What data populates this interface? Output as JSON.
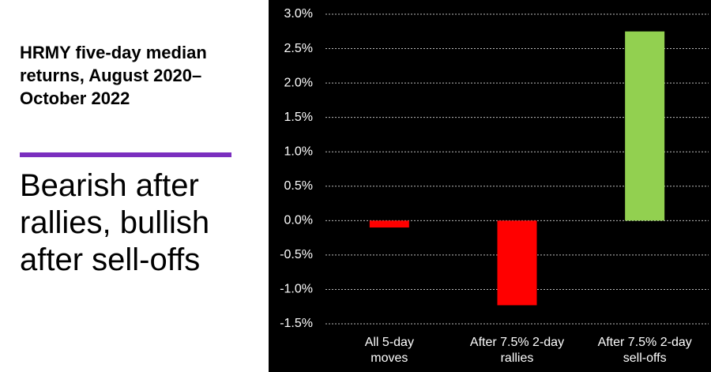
{
  "chart_data": {
    "type": "bar",
    "title": "HRMY five-day median returns, August 2020–October 2022",
    "subtitle": "Bearish after rallies, bullish after sell-offs",
    "categories": [
      "All 5-day moves",
      "After 7.5% 2-day rallies",
      "After 7.5% 2-day sell-offs"
    ],
    "values": [
      -0.1,
      -1.23,
      2.75
    ],
    "colors": [
      "#ff0000",
      "#ff0000",
      "#92d050"
    ],
    "ylim": [
      -1.5,
      3.0
    ],
    "yticks": [
      {
        "value": -1.5,
        "label": "-1.5%"
      },
      {
        "value": -1.0,
        "label": "-1.0%"
      },
      {
        "value": -0.5,
        "label": "-0.5%"
      },
      {
        "value": 0.0,
        "label": "0.0%"
      },
      {
        "value": 0.5,
        "label": "0.5%"
      },
      {
        "value": 1.0,
        "label": "1.0%"
      },
      {
        "value": 1.5,
        "label": "1.5%"
      },
      {
        "value": 2.0,
        "label": "2.0%"
      },
      {
        "value": 2.5,
        "label": "2.5%"
      },
      {
        "value": 3.0,
        "label": "3.0%"
      }
    ],
    "grid": true
  }
}
